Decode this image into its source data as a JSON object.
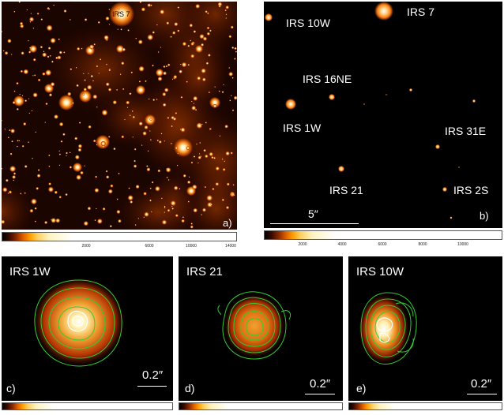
{
  "panel_a": {
    "label_irs7": "IRS 7",
    "panel_letter": "a)",
    "colorbar_ticks": [
      "2000",
      "6000",
      "10000",
      "14000"
    ]
  },
  "panel_b": {
    "sources": [
      {
        "name": "IRS 10W"
      },
      {
        "name": "IRS 7"
      },
      {
        "name": "IRS 16NE"
      },
      {
        "name": "IRS 1W"
      },
      {
        "name": "IRS 31E"
      },
      {
        "name": "IRS 21"
      },
      {
        "name": "IRS 2S"
      }
    ],
    "scale_label": "5″",
    "panel_letter": "b)",
    "colorbar_ticks": [
      "2000",
      "4000",
      "6000",
      "8000",
      "10000"
    ]
  },
  "panel_c": {
    "title": "IRS 1W",
    "scale_label": "0.2″",
    "panel_letter": "c)"
  },
  "panel_d": {
    "title": "IRS 21",
    "scale_label": "0.2″",
    "panel_letter": "d)"
  },
  "panel_e": {
    "title": "IRS 10W",
    "scale_label": "0.2″",
    "panel_letter": "e)"
  },
  "colors": {
    "background": "#000000",
    "star_core": "#ffffff",
    "star_glow": "#ff8c1a",
    "contour": "#33cc33"
  }
}
